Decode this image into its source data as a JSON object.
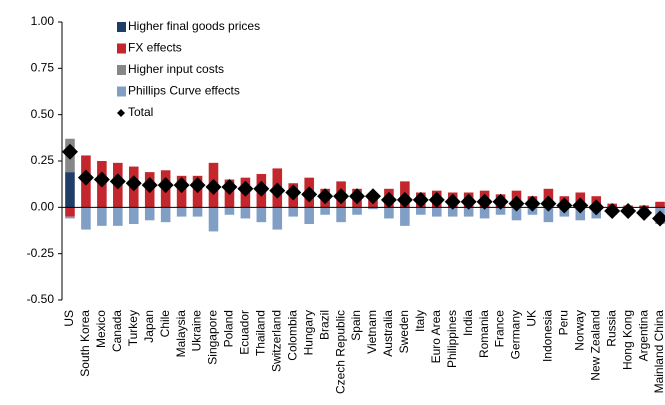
{
  "chart_data": {
    "type": "stacked_bar",
    "categories": [
      "US",
      "South Korea",
      "Mexico",
      "Canada",
      "Turkey",
      "Japan",
      "Chile",
      "Malaysia",
      "Ukraine",
      "Singapore",
      "Poland",
      "Ecuador",
      "Thailand",
      "Switzerland",
      "Colombia",
      "Hungary",
      "Brazil",
      "Czech Republic",
      "Spain",
      "Vietnam",
      "Australia",
      "Sweden",
      "Italy",
      "Euro Area",
      "Philippines",
      "India",
      "Romania",
      "France",
      "Germany",
      "UK",
      "Indonesia",
      "Peru",
      "Norway",
      "New Zealand",
      "Russia",
      "Hong Kong",
      "Argentina",
      "Mainland China"
    ],
    "series": [
      {
        "name": "Higher final goods prices",
        "color": "#1f3d66",
        "values": [
          0.19,
          0,
          0,
          0,
          0,
          0,
          0,
          0,
          0,
          0,
          0,
          0,
          0,
          0,
          0,
          0,
          0,
          0,
          0,
          0,
          0,
          0,
          0,
          0,
          0,
          0,
          0,
          0,
          0,
          0,
          0,
          0,
          0,
          0,
          0,
          0,
          0,
          0
        ]
      },
      {
        "name": "FX effects",
        "color": "#c3262c",
        "values": [
          -0.05,
          0.28,
          0.25,
          0.24,
          0.22,
          0.19,
          0.2,
          0.17,
          0.17,
          0.24,
          0.15,
          0.16,
          0.18,
          0.21,
          0.13,
          0.16,
          0.1,
          0.14,
          0.1,
          0.07,
          0.1,
          0.14,
          0.08,
          0.09,
          0.08,
          0.08,
          0.09,
          0.07,
          0.09,
          0.06,
          0.1,
          0.06,
          0.08,
          0.06,
          0.02,
          0.01,
          0.01,
          0.03
        ]
      },
      {
        "name": "Higher input costs",
        "color": "#878787",
        "values": [
          0.18,
          0,
          0,
          0,
          0,
          0,
          0,
          0,
          0,
          0,
          0,
          0,
          0,
          0,
          0,
          0,
          0,
          0,
          0,
          0,
          0,
          0,
          0,
          0,
          0,
          0,
          0,
          0,
          0,
          0,
          0,
          0,
          0,
          0,
          0,
          0,
          0,
          0
        ]
      },
      {
        "name": "Phillips Curve effects",
        "color": "#819fc5",
        "values": [
          -0.01,
          -0.12,
          -0.1,
          -0.1,
          -0.09,
          -0.07,
          -0.08,
          -0.05,
          -0.05,
          -0.13,
          -0.04,
          -0.06,
          -0.08,
          -0.12,
          -0.05,
          -0.09,
          -0.04,
          -0.08,
          -0.04,
          -0.01,
          -0.06,
          -0.1,
          -0.04,
          -0.05,
          -0.05,
          -0.05,
          -0.06,
          -0.04,
          -0.07,
          -0.04,
          -0.08,
          -0.05,
          -0.07,
          -0.06,
          -0.04,
          -0.03,
          -0.04,
          -0.09
        ]
      },
      {
        "name": "Total",
        "color": "#000000",
        "marker": "diamond",
        "values": [
          0.3,
          0.16,
          0.15,
          0.14,
          0.13,
          0.12,
          0.12,
          0.12,
          0.12,
          0.11,
          0.11,
          0.1,
          0.1,
          0.09,
          0.08,
          0.07,
          0.06,
          0.06,
          0.06,
          0.06,
          0.04,
          0.04,
          0.04,
          0.04,
          0.03,
          0.03,
          0.03,
          0.03,
          0.02,
          0.02,
          0.02,
          0.01,
          0.01,
          0,
          -0.02,
          -0.02,
          -0.03,
          -0.06
        ]
      }
    ],
    "ylim": [
      -0.5,
      1.0
    ],
    "yticks": [
      {
        "value": -0.5,
        "label": "-0.50"
      },
      {
        "value": -0.25,
        "label": "-0.25"
      },
      {
        "value": 0,
        "label": "0.00"
      },
      {
        "value": 0.25,
        "label": "0.25"
      },
      {
        "value": 0.5,
        "label": "0.50"
      },
      {
        "value": 0.75,
        "label": "0.75"
      },
      {
        "value": 1.0,
        "label": "1.00"
      }
    ],
    "legend": "top-left"
  }
}
